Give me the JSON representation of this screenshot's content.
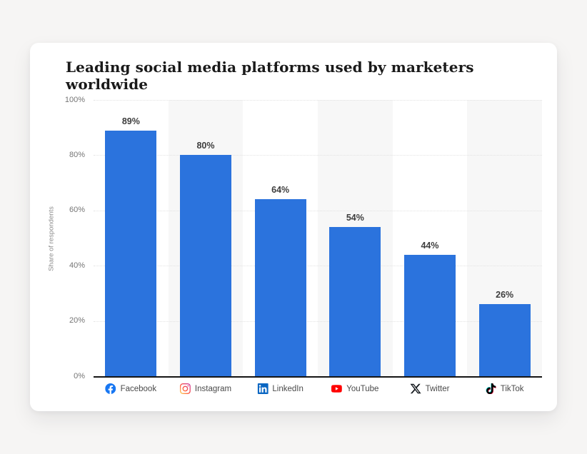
{
  "page": {
    "background_color": "#f6f5f4",
    "card_color": "#ffffff"
  },
  "chart_data": {
    "type": "bar",
    "title": "Leading social media platforms used by marketers worldwide",
    "xlabel": "",
    "ylabel": "Share of respondents",
    "ylim": [
      0,
      100
    ],
    "ytick_values": [
      0,
      20,
      40,
      60,
      80,
      100
    ],
    "ytick_labels": [
      "0%",
      "20%",
      "40%",
      "60%",
      "80%",
      "100%"
    ],
    "grid": "horizontal dotted gridlines, solid black baseline at 0%",
    "column_bands": "alternating light-gray vertical bands behind columns 2, 4, 6",
    "legend_position": "icons with labels below x-axis",
    "bar_color": "#2b73dd",
    "band_color": "#f7f7f7",
    "categories": [
      "Facebook",
      "Instagram",
      "LinkedIn",
      "YouTube",
      "Twitter",
      "TikTok"
    ],
    "values": [
      89,
      80,
      64,
      54,
      44,
      26
    ],
    "value_labels": [
      "89%",
      "80%",
      "64%",
      "54%",
      "44%",
      "26%"
    ],
    "icons": [
      "facebook-icon",
      "instagram-icon",
      "linkedin-icon",
      "youtube-icon",
      "twitter-x-icon",
      "tiktok-icon"
    ],
    "icon_colors": {
      "facebook": "#1877f2",
      "instagram": "gradient #ffdd55 / #ff543e / #c837ab",
      "linkedin": "#0a66c2",
      "youtube": "#ff0000",
      "twitter_x": "#0f1419",
      "tiktok": "#010101 with #25f4ee and #fe2c55 fringes"
    }
  }
}
